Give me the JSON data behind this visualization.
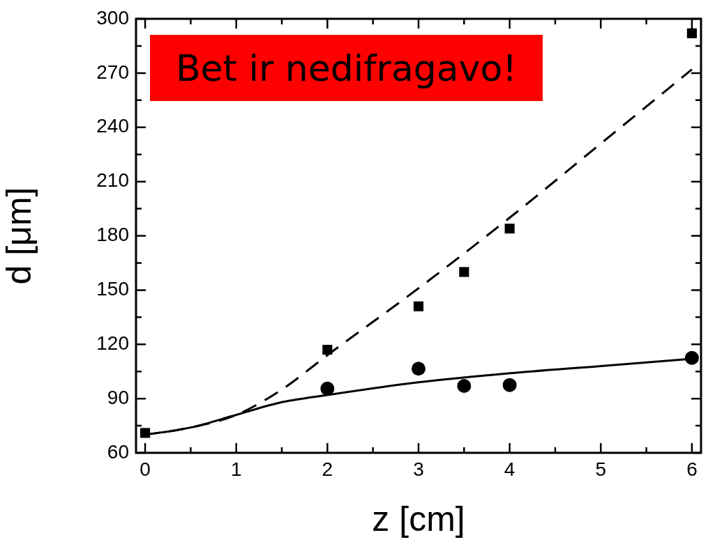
{
  "chart_data": {
    "type": "scatter",
    "xlabel": "z [cm]",
    "ylabel": "d [μm]",
    "annotations": [
      "Bet ir nedifragavo!"
    ],
    "xlim": [
      -0.1,
      6.1
    ],
    "xticks": [
      0,
      1,
      2,
      3,
      4,
      5,
      6
    ],
    "ylim": [
      60,
      300
    ],
    "yticks": [
      60,
      90,
      120,
      150,
      180,
      210,
      240,
      270,
      300
    ],
    "series": [
      {
        "type": "line",
        "line_style": "dashed",
        "marker": "none",
        "color": "#000000",
        "x": [
          0,
          0.5,
          1,
          1.5,
          2,
          3,
          4,
          5,
          6
        ],
        "values": [
          70,
          74,
          81,
          95,
          114,
          151,
          190,
          231,
          272
        ]
      },
      {
        "type": "line",
        "line_style": "solid",
        "marker": "none",
        "color": "#000000",
        "x": [
          0,
          0.5,
          1,
          1.5,
          2,
          3,
          4,
          5,
          6
        ],
        "values": [
          70,
          74,
          81,
          88,
          92,
          99,
          104,
          108,
          112
        ]
      },
      {
        "type": "scatter",
        "marker": "square",
        "color": "#000000",
        "x": [
          0,
          2,
          3,
          3.5,
          4,
          6
        ],
        "values": [
          71,
          117,
          141,
          160,
          184,
          292
        ]
      },
      {
        "type": "scatter",
        "marker": "circle",
        "color": "#000000",
        "x": [
          2,
          3,
          3.5,
          4,
          6
        ],
        "values": [
          95.5,
          106.5,
          97,
          97.5,
          112.5
        ]
      }
    ]
  }
}
